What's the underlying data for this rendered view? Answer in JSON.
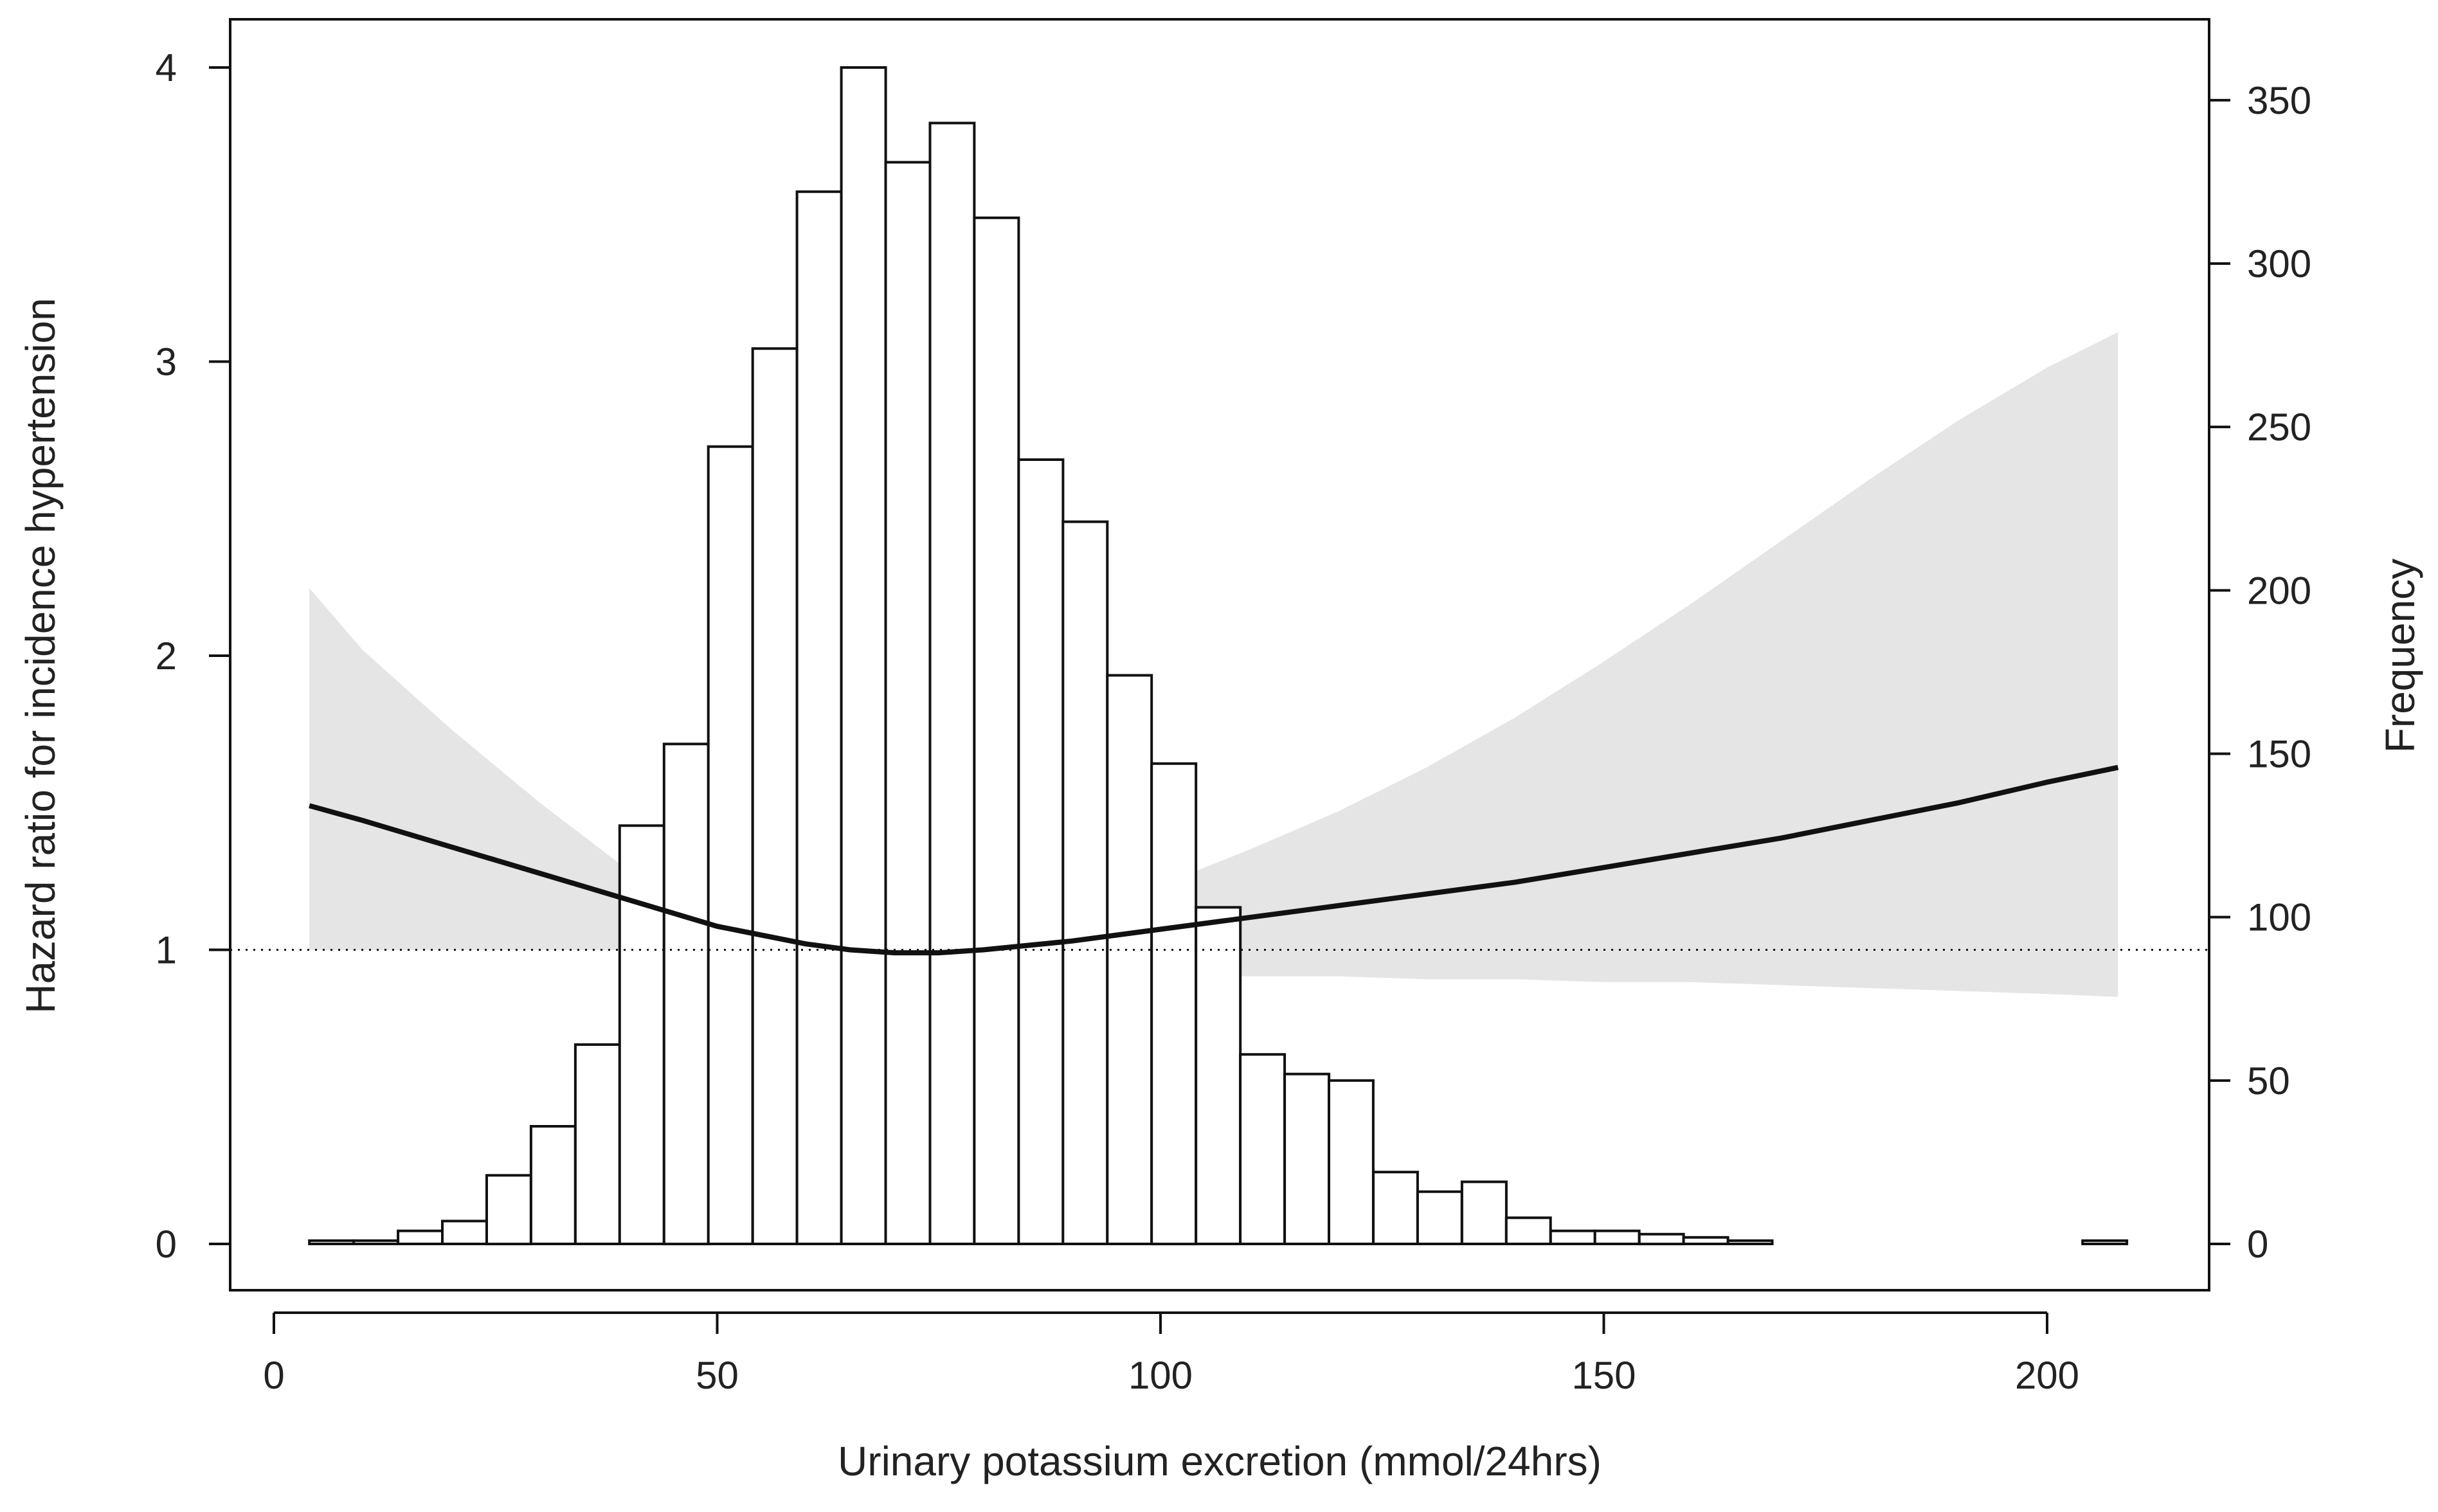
{
  "chart_data": {
    "type": "line+histogram",
    "xlabel": "Urinary potassium excretion (mmol/24hrs)",
    "ylabel_left": "Hazard ratio for incidence hypertension",
    "ylabel_right": "Frequency",
    "xlim": [
      0,
      210
    ],
    "ylim_left": [
      0,
      4
    ],
    "ylim_right": [
      0,
      360
    ],
    "x_ticks": [
      0,
      50,
      100,
      150,
      200
    ],
    "y_ticks_left": [
      0,
      1,
      2,
      3,
      4
    ],
    "y_ticks_right": [
      0,
      50,
      100,
      150,
      200,
      250,
      300,
      350
    ],
    "reference_line": 1,
    "histogram": {
      "bin_edges": [
        4,
        9,
        14,
        19,
        24,
        29,
        34,
        39,
        44,
        49,
        54,
        59,
        64,
        69,
        74,
        79,
        84,
        89,
        94,
        99,
        104,
        109,
        114,
        119,
        124,
        129,
        134,
        139,
        144,
        149,
        154,
        159,
        164,
        169,
        174,
        179,
        184,
        189,
        194,
        199,
        204,
        209
      ],
      "counts": [
        1,
        1,
        4,
        7,
        21,
        36,
        61,
        128,
        153,
        244,
        274,
        322,
        360,
        331,
        343,
        314,
        240,
        221,
        174,
        147,
        103,
        58,
        52,
        50,
        22,
        16,
        19,
        8,
        4,
        4,
        3,
        2,
        1,
        0,
        0,
        0,
        0,
        0,
        0,
        0,
        1
      ]
    },
    "hazard_ratio": {
      "x": [
        4,
        10,
        20,
        30,
        40,
        50,
        60,
        65,
        70,
        75,
        80,
        90,
        100,
        110,
        120,
        130,
        140,
        150,
        160,
        170,
        180,
        190,
        200,
        208
      ],
      "y": [
        1.49,
        1.44,
        1.35,
        1.26,
        1.17,
        1.08,
        1.02,
        1.0,
        0.99,
        0.99,
        1.0,
        1.03,
        1.07,
        1.11,
        1.15,
        1.19,
        1.23,
        1.28,
        1.33,
        1.38,
        1.44,
        1.5,
        1.57,
        1.62
      ],
      "ci_lower": [
        1.0,
        1.0,
        1.0,
        1.0,
        1.0,
        0.99,
        0.99,
        0.98,
        0.97,
        0.95,
        0.93,
        0.92,
        0.92,
        0.91,
        0.91,
        0.9,
        0.9,
        0.89,
        0.89,
        0.88,
        0.87,
        0.86,
        0.85,
        0.84
      ],
      "ci_upper": [
        2.23,
        2.02,
        1.75,
        1.5,
        1.27,
        1.1,
        1.03,
        1.01,
        1.0,
        1.01,
        1.04,
        1.12,
        1.22,
        1.34,
        1.47,
        1.62,
        1.79,
        1.98,
        2.18,
        2.39,
        2.6,
        2.8,
        2.98,
        3.1
      ]
    },
    "colors": {
      "line": "#111111",
      "ci_band": "#e5e5e5",
      "bar_fill": "#ffffff",
      "bar_stroke": "#111111",
      "axis": "#111111",
      "text": "#222222"
    }
  }
}
